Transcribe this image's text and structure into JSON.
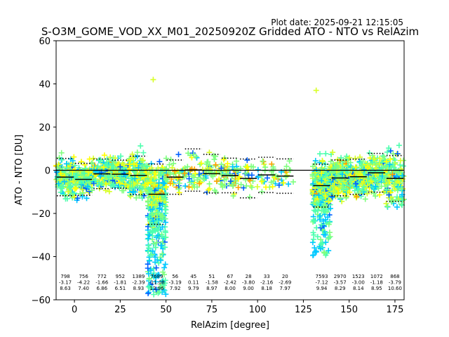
{
  "plot_date": "Plot date: 2025-09-21 12:15:05",
  "chart_data": {
    "type": "scatter",
    "title": "S-O3M_GOME_VOD_XX_M01_20250920Z Gridded ATO - NTO vs RelAzim",
    "xlabel": "RelAzim [degree]",
    "ylabel": "ATO - NTO [DU]",
    "xlim": [
      -10,
      180
    ],
    "ylim": [
      -60,
      60
    ],
    "xticks": [
      0,
      25,
      50,
      75,
      100,
      125,
      150,
      175
    ],
    "yticks": [
      -60,
      -40,
      -20,
      0,
      20,
      40,
      60
    ],
    "marker": "+",
    "scatter_colors": [
      "#ffff00",
      "#d8ff28",
      "#7fff7f",
      "#4dffae",
      "#00c8ff",
      "#0060ff",
      "#ffa000"
    ],
    "clusters": [
      {
        "x": [
          -10,
          50
        ],
        "y": [
          -28,
          22
        ],
        "color_mix": "dense"
      },
      {
        "x": [
          40,
          50
        ],
        "y": [
          -58,
          -20
        ],
        "color_mix": "cyan"
      },
      {
        "x": [
          50,
          122
        ],
        "y": [
          -22,
          20
        ],
        "color_mix": "sparse"
      },
      {
        "x": [
          131,
          180
        ],
        "y": [
          -42,
          25
        ],
        "color_mix": "dense"
      }
    ],
    "outliers": [
      {
        "x": 43,
        "y": 42
      },
      {
        "x": 132,
        "y": 37
      }
    ],
    "bins": [
      {
        "x": -5,
        "n": "798",
        "mean": -3.17,
        "std": 8.63
      },
      {
        "x": 5,
        "n": "756",
        "mean": -4.22,
        "std": 7.4
      },
      {
        "x": 15,
        "n": "772",
        "mean": -1.66,
        "std": 6.86
      },
      {
        "x": 25,
        "n": "952",
        "mean": -1.81,
        "std": 6.51
      },
      {
        "x": 35,
        "n": "1389",
        "mean": -2.39,
        "std": 8.93
      },
      {
        "x": 45,
        "n": "7689",
        "mean": -11.08,
        "std": 13.96
      },
      {
        "x": 55,
        "n": "56",
        "mean": -3.19,
        "std": 7.92
      },
      {
        "x": 65,
        "n": "45",
        "mean": 0.11,
        "std": 9.79
      },
      {
        "x": 75,
        "n": "51",
        "mean": -1.58,
        "std": 8.97
      },
      {
        "x": 85,
        "n": "67",
        "mean": -2.42,
        "std": 8.0
      },
      {
        "x": 95,
        "n": "28",
        "mean": -3.8,
        "std": 9.0
      },
      {
        "x": 105,
        "n": "33",
        "mean": -2.16,
        "std": 8.18
      },
      {
        "x": 115,
        "n": "20",
        "mean": -2.69,
        "std": 7.97
      },
      {
        "x": 135,
        "n": "7593",
        "mean": -7.12,
        "std": 9.94
      },
      {
        "x": 145,
        "n": "2970",
        "mean": -3.57,
        "std": 8.29
      },
      {
        "x": 155,
        "n": "1523",
        "mean": -3.0,
        "std": 8.14
      },
      {
        "x": 165,
        "n": "1072",
        "mean": -1.18,
        "std": 8.95
      },
      {
        "x": 175,
        "n": "868",
        "mean": -3.79,
        "std": 10.6
      }
    ],
    "bin_labels": [
      {
        "n": "798",
        "mean": "-3.17",
        "std": "8.63"
      },
      {
        "n": "756",
        "mean": "-4.22",
        "std": "7.40"
      },
      {
        "n": "772",
        "mean": "-1.66",
        "std": "6.86"
      },
      {
        "n": "952",
        "mean": "-1.81",
        "std": "6.51"
      },
      {
        "n": "1389",
        "mean": "-2.39",
        "std": "8.93"
      },
      {
        "n": "7689",
        "mean": "-11.08",
        "std": "13.96"
      },
      {
        "n": "56",
        "mean": "-3.19",
        "std": "7.92"
      },
      {
        "n": "45",
        "mean": "0.11",
        "std": "9.79"
      },
      {
        "n": "51",
        "mean": "-1.58",
        "std": "8.97"
      },
      {
        "n": "67",
        "mean": "-2.42",
        "std": "8.00"
      },
      {
        "n": "28",
        "mean": "-3.80",
        "std": "9.00"
      },
      {
        "n": "33",
        "mean": "-2.16",
        "std": "8.18"
      },
      {
        "n": "20",
        "mean": "-2.69",
        "std": "7.97"
      },
      {
        "n": "7593",
        "mean": "-7.12",
        "std": "9.94"
      },
      {
        "n": "2970",
        "mean": "-3.57",
        "std": "8.29"
      },
      {
        "n": "1523",
        "mean": "-3.00",
        "std": "8.14"
      },
      {
        "n": "1072",
        "mean": "-1.18",
        "std": "8.95"
      },
      {
        "n": "868",
        "mean": "-3.79",
        "std": "10.60"
      }
    ]
  }
}
